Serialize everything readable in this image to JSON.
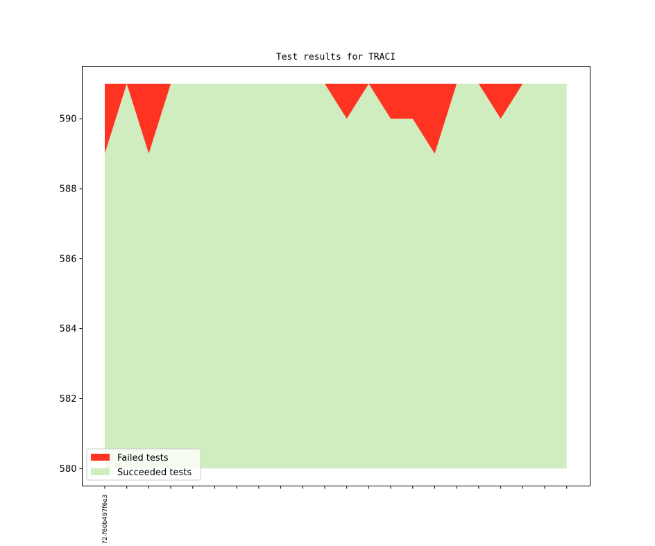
{
  "chart_data": {
    "type": "area",
    "title": "Test results for TRACI",
    "xlabel": "",
    "ylabel": "",
    "ylim": [
      579.5,
      591.5
    ],
    "yticks": [
      580,
      582,
      584,
      586,
      588,
      590
    ],
    "x_count": 22,
    "x_tick_labels": [
      "?2-f60b497f6e3"
    ],
    "total": 591,
    "failed": [
      2,
      0,
      2,
      0,
      0,
      0,
      0,
      0,
      0,
      0,
      0,
      1,
      0,
      1,
      1,
      2,
      0,
      0,
      1,
      0,
      0,
      0
    ],
    "baseline": 580,
    "series": [
      {
        "name": "Failed tests",
        "color": "#ff3322"
      },
      {
        "name": "Succeeded tests",
        "color": "#cfedbf"
      }
    ],
    "legend_position": "lower-left",
    "grid": false
  }
}
